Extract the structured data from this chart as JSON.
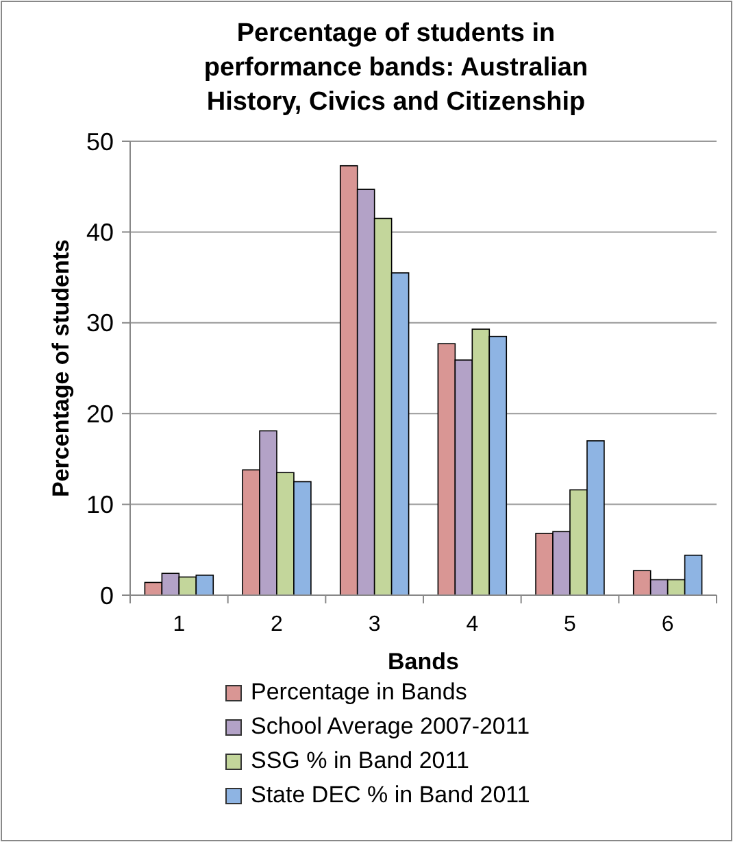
{
  "chart_data": {
    "type": "bar",
    "title": "Percentage of students in performance bands: Australian History, Civics and Citizenship",
    "xlabel": "Bands",
    "ylabel": "Percentage of students",
    "categories": [
      "1",
      "2",
      "3",
      "4",
      "5",
      "6"
    ],
    "series": [
      {
        "name": "Percentage in Bands",
        "color": "#d99694",
        "values": [
          1.4,
          13.8,
          47.3,
          27.7,
          6.8,
          2.7
        ]
      },
      {
        "name": "School Average 2007-2011",
        "color": "#b3a2c7",
        "values": [
          2.4,
          18.1,
          44.7,
          25.9,
          7.0,
          1.7
        ]
      },
      {
        "name": "SSG % in Band 2011",
        "color": "#c3d69b",
        "values": [
          2.0,
          13.5,
          41.5,
          29.3,
          11.6,
          1.7
        ]
      },
      {
        "name": "State DEC % in Band 2011",
        "color": "#8eb4e3",
        "values": [
          2.2,
          12.5,
          35.5,
          28.5,
          17.0,
          4.4
        ]
      }
    ],
    "ylim": [
      0,
      50
    ],
    "yticks": [
      0,
      10,
      20,
      30,
      40,
      50
    ],
    "grid": "y",
    "legend": "bottom"
  }
}
